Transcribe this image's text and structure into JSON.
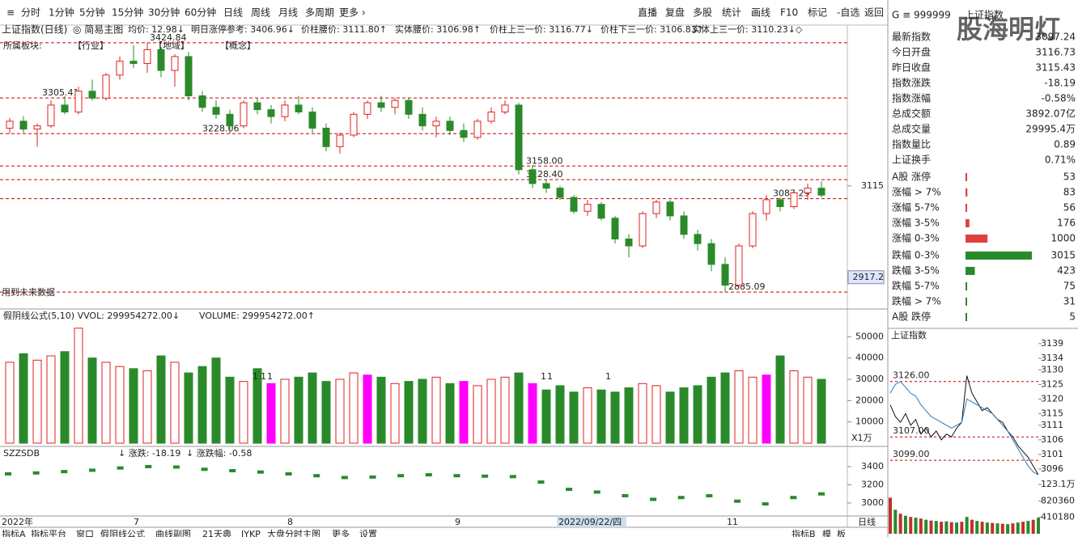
{
  "toolbar": {
    "left": [
      "分时",
      "1分钟",
      "5分钟",
      "15分钟",
      "30分钟",
      "60分钟",
      "日线",
      "周线",
      "月线",
      "多周期",
      "更多 ›"
    ],
    "active_color": "#d00000",
    "right": [
      "直播",
      "复盘",
      "多股",
      "统计",
      "画线",
      "F10",
      "标记",
      "-自选",
      "返回"
    ]
  },
  "header": {
    "title": "上证指数(日线)",
    "main": "◎ 简易主图",
    "items": [
      "均价: 12.98↓",
      "明日涨停参考: 3406.96↓",
      "价柱腰价: 3111.80↑",
      "实体腰价: 3106.98↑",
      "价柱上三一价: 3116.77↓",
      "价柱下三一价: 3106.83↑",
      "实体上三一价: 3110.23↓◇"
    ],
    "item_color": "#c00000"
  },
  "sector": [
    "所属板块:",
    "【行业】",
    "【地域】",
    "【概念】"
  ],
  "note": "用到未来数据",
  "main_chart": {
    "type": "candlestick",
    "up_color": "#e02020",
    "down_color": "#2a8a2a",
    "ylim": [
      2852,
      3465
    ],
    "yticks": [
      3115,
      2917.2
    ],
    "levels": [
      {
        "value": 3424.84,
        "label": "3424.84"
      },
      {
        "value": 3305.41,
        "label": "3305.41"
      },
      {
        "value": 3228.06,
        "label": "3228.06"
      },
      {
        "value": 3158.0,
        "label": "3158.00"
      },
      {
        "value": 3128.4,
        "label": "3128.40"
      },
      {
        "value": 3087.29,
        "label": "3087.29"
      },
      {
        "value": 2885.09,
        "label": "2885.09"
      }
    ],
    "candles": [
      [
        3240,
        3262,
        3228,
        3255
      ],
      [
        3255,
        3266,
        3230,
        3238
      ],
      [
        3238,
        3250,
        3200,
        3245
      ],
      [
        3245,
        3300,
        3240,
        3290
      ],
      [
        3290,
        3310,
        3270,
        3275
      ],
      [
        3275,
        3330,
        3270,
        3320
      ],
      [
        3320,
        3345,
        3300,
        3305
      ],
      [
        3305,
        3360,
        3300,
        3355
      ],
      [
        3355,
        3395,
        3345,
        3385
      ],
      [
        3385,
        3420,
        3370,
        3380
      ],
      [
        3380,
        3424.84,
        3360,
        3410
      ],
      [
        3410,
        3415,
        3350,
        3365
      ],
      [
        3365,
        3400,
        3330,
        3395
      ],
      [
        3395,
        3405,
        3300,
        3310
      ],
      [
        3310,
        3320,
        3275,
        3285
      ],
      [
        3285,
        3300,
        3260,
        3270
      ],
      [
        3270,
        3280,
        3228.06,
        3245
      ],
      [
        3245,
        3300,
        3240,
        3295
      ],
      [
        3295,
        3305,
        3270,
        3280
      ],
      [
        3280,
        3290,
        3250,
        3265
      ],
      [
        3265,
        3300,
        3255,
        3290
      ],
      [
        3290,
        3310,
        3270,
        3275
      ],
      [
        3275,
        3285,
        3230,
        3240
      ],
      [
        3240,
        3250,
        3190,
        3200
      ],
      [
        3200,
        3230,
        3185,
        3225
      ],
      [
        3225,
        3275,
        3220,
        3270
      ],
      [
        3270,
        3300,
        3260,
        3295
      ],
      [
        3295,
        3310,
        3275,
        3285
      ],
      [
        3285,
        3305,
        3270,
        3300
      ],
      [
        3300,
        3305,
        3260,
        3270
      ],
      [
        3270,
        3285,
        3235,
        3245
      ],
      [
        3245,
        3265,
        3220,
        3255
      ],
      [
        3255,
        3265,
        3225,
        3235
      ],
      [
        3235,
        3250,
        3210,
        3220
      ],
      [
        3220,
        3260,
        3215,
        3255
      ],
      [
        3255,
        3285,
        3250,
        3275
      ],
      [
        3275,
        3300,
        3270,
        3290
      ],
      [
        3290,
        3295,
        3140,
        3150
      ],
      [
        3150,
        3160,
        3110,
        3120
      ],
      [
        3120,
        3128.4,
        3100,
        3110
      ],
      [
        3110,
        3115,
        3085,
        3090
      ],
      [
        3090,
        3095,
        3055,
        3060
      ],
      [
        3060,
        3085,
        3050,
        3075
      ],
      [
        3075,
        3080,
        3040,
        3045
      ],
      [
        3045,
        3050,
        2990,
        3000
      ],
      [
        3000,
        3010,
        2960,
        2985
      ],
      [
        2985,
        3060,
        2980,
        3055
      ],
      [
        3055,
        3085,
        3045,
        3080
      ],
      [
        3080,
        3085,
        3040,
        3050
      ],
      [
        3050,
        3060,
        3000,
        3010
      ],
      [
        3010,
        3020,
        2975,
        2990
      ],
      [
        2990,
        3000,
        2930,
        2945
      ],
      [
        2945,
        2960,
        2885.09,
        2900
      ],
      [
        2900,
        2990,
        2895,
        2985
      ],
      [
        2985,
        3060,
        2980,
        3055
      ],
      [
        3055,
        3095,
        3040,
        3085
      ],
      [
        3085,
        3090,
        3060,
        3070
      ],
      [
        3070,
        3105,
        3065,
        3100
      ],
      [
        3100,
        3120,
        3085,
        3110
      ],
      [
        3110,
        3125,
        3090,
        3095
      ]
    ]
  },
  "volume_chart": {
    "type": "bar",
    "title": "假阴线公式(5,10) VVOL: 299954272.00↓",
    "title2": "VOLUME: 299954272.00↑",
    "unit": "X1万",
    "ylim": [
      0,
      60000
    ],
    "yticks": [
      10000,
      20000,
      30000,
      40000,
      50000
    ],
    "flag": "1",
    "values": [
      38000,
      42000,
      39000,
      41000,
      43000,
      54000,
      40000,
      38000,
      36000,
      35000,
      34000,
      41000,
      38000,
      33000,
      36000,
      40000,
      31000,
      29000,
      35000,
      28000,
      30000,
      31000,
      33000,
      29000,
      30000,
      33000,
      32000,
      31000,
      28000,
      29000,
      30000,
      31000,
      28000,
      29000,
      27000,
      30000,
      31000,
      33000,
      28000,
      25000,
      27000,
      24000,
      26000,
      25000,
      24000,
      26000,
      28000,
      27000,
      24000,
      26000,
      27000,
      31000,
      33000,
      34000,
      31000,
      32000,
      41000,
      34000,
      31000,
      30000
    ],
    "colors": [
      "#e02020",
      "#2a8a2a",
      "#e02020",
      "#e02020",
      "#2a8a2a",
      "#e02020",
      "#2a8a2a",
      "#e02020",
      "#e02020",
      "#2a8a2a",
      "#e02020",
      "#2a8a2a",
      "#e02020",
      "#2a8a2a",
      "#2a8a2a",
      "#2a8a2a",
      "#2a8a2a",
      "#e02020",
      "#2a8a2a",
      "#ff00ff",
      "#e02020",
      "#2a8a2a",
      "#2a8a2a",
      "#2a8a2a",
      "#e02020",
      "#e02020",
      "#ff00ff",
      "#2a8a2a",
      "#e02020",
      "#2a8a2a",
      "#2a8a2a",
      "#e02020",
      "#2a8a2a",
      "#ff00ff",
      "#e02020",
      "#e02020",
      "#e02020",
      "#2a8a2a",
      "#ff00ff",
      "#2a8a2a",
      "#2a8a2a",
      "#2a8a2a",
      "#e02020",
      "#2a8a2a",
      "#2a8a2a",
      "#2a8a2a",
      "#e02020",
      "#e02020",
      "#2a8a2a",
      "#2a8a2a",
      "#2a8a2a",
      "#2a8a2a",
      "#2a8a2a",
      "#e02020",
      "#e02020",
      "#ff00ff",
      "#2a8a2a",
      "#e02020",
      "#e02020",
      "#2a8a2a"
    ]
  },
  "sub_chart": {
    "type": "line",
    "title": "SZZSDB",
    "change": "↓ 涨跌: -18.19",
    "change_pct": "↓ 涨跌幅: -0.58",
    "color": "#2a8a2a",
    "ylim": [
      2884,
      3595
    ],
    "yticks": [
      3000,
      3200,
      3400
    ],
    "values": [
      3320,
      3330,
      3345,
      3360,
      3385,
      3400,
      3395,
      3370,
      3355,
      3340,
      3320,
      3300,
      3280,
      3285,
      3300,
      3310,
      3300,
      3295,
      3290,
      3230,
      3150,
      3120,
      3080,
      3040,
      3060,
      3080,
      3020,
      2990,
      3060,
      3100
    ]
  },
  "date_axis": [
    "2022年",
    "7",
    "8",
    "9",
    "2022/09/22/四",
    "11"
  ],
  "period": "日线",
  "bottom_tabs": [
    "指标A",
    "指标平台",
    "窗口",
    "假阴线公式",
    "曲线副图",
    "21天典",
    "JYKP",
    "大盘分时主图",
    "更多",
    "设置"
  ],
  "bottom_right": [
    "指标B",
    "模",
    "板"
  ],
  "panel": {
    "code": "G ≡ 999999",
    "name": "上证指数",
    "logo": "股海明灯",
    "rows": [
      {
        "label": "最新指数",
        "value": "3097.24",
        "color": "#2a8a2a"
      },
      {
        "label": "今日开盘",
        "value": "3116.73",
        "color": "#d00000"
      },
      {
        "label": "昨日收盘",
        "value": "3115.43",
        "color": "#222"
      },
      {
        "label": "指数涨跌",
        "value": "-18.19",
        "color": "#2a8a2a"
      },
      {
        "label": "指数涨幅",
        "value": "-0.58%",
        "color": "#2a8a2a"
      },
      {
        "label": "总成交额",
        "value": "3892.07亿",
        "color": "#222"
      },
      {
        "label": "总成交量",
        "value": "29995.4万",
        "color": "#222"
      },
      {
        "label": "指数量比",
        "value": "0.89",
        "color": "#2a8a2a"
      },
      {
        "label": "上证换手",
        "value": "0.71%",
        "color": "#222"
      }
    ],
    "breadth": [
      {
        "label": "A股 涨停",
        "value": 53,
        "color": "#e04040"
      },
      {
        "label": "涨幅 > 7%",
        "value": 83,
        "color": "#e04040"
      },
      {
        "label": "涨幅 5-7%",
        "value": 56,
        "color": "#e04040"
      },
      {
        "label": "涨幅 3-5%",
        "value": 176,
        "color": "#e04040"
      },
      {
        "label": "涨幅 0-3%",
        "value": 1000,
        "color": "#e04040"
      },
      {
        "label": "跌幅 0-3%",
        "value": 3015,
        "color": "#2a8a2a"
      },
      {
        "label": "跌幅 3-5%",
        "value": 423,
        "color": "#2a8a2a"
      },
      {
        "label": "跌幅 5-7%",
        "value": 75,
        "color": "#2a8a2a"
      },
      {
        "label": "跌幅 > 7%",
        "value": 31,
        "color": "#2a8a2a"
      },
      {
        "label": "A股 跌停",
        "value": 5,
        "color": "#2a8a2a"
      }
    ]
  },
  "intraday": {
    "type": "line",
    "title": "上证指数",
    "ylim": [
      3093.2,
      3140.9
    ],
    "yticks": [
      3139,
      3134,
      3130,
      3125,
      3120,
      3115,
      3111,
      3106,
      3101,
      3096
    ],
    "levels": [
      {
        "value": 3126.0,
        "label": "3126.00"
      },
      {
        "value": 3107.0,
        "label": "3107.00"
      },
      {
        "value": 3099.0,
        "label": "3099.00"
      }
    ],
    "series": [
      {
        "color": "#111",
        "values": [
          3118,
          3114,
          3112,
          3115,
          3111,
          3113,
          3108,
          3110,
          3107,
          3109,
          3106,
          3108,
          3107,
          3110,
          3112,
          3128,
          3122,
          3119,
          3116,
          3117,
          3115,
          3113,
          3112,
          3109,
          3107,
          3104,
          3102,
          3100,
          3097,
          3094
        ]
      },
      {
        "color": "#2a7ab8",
        "values": [
          3122,
          3125,
          3126,
          3124,
          3122,
          3121,
          3118,
          3116,
          3114,
          3113,
          3112,
          3111,
          3110,
          3111,
          3112,
          3120,
          3119,
          3118,
          3117,
          3116,
          3115,
          3113,
          3111,
          3109,
          3106,
          3103,
          3100,
          3097,
          3095,
          3094
        ]
      }
    ],
    "volume_ylim": [
      0,
      1231000
    ],
    "volume_ticks": [
      {
        "value": 1231000,
        "label": "123.1万"
      },
      820360,
      410180
    ],
    "volume": [
      900000,
      600000,
      500000,
      450000,
      420000,
      400000,
      380000,
      350000,
      330000,
      320000,
      300000,
      310000,
      290000,
      280000,
      300000,
      420000,
      350000,
      320000,
      300000,
      280000,
      270000,
      260000,
      250000,
      240000,
      260000,
      280000,
      300000,
      320000,
      350000,
      400000
    ]
  }
}
